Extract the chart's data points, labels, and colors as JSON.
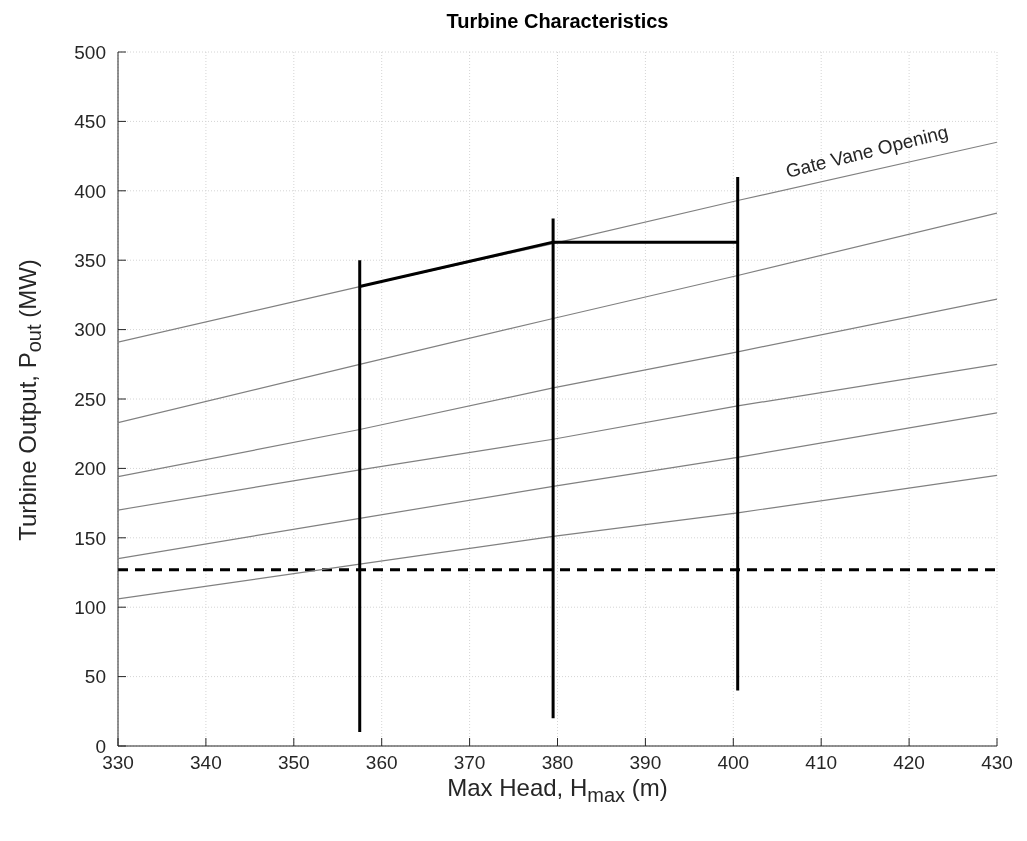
{
  "chart_data": {
    "type": "line",
    "title": "Turbine Characteristics",
    "xlabel": "Max Head, H$_{max}$ (m)",
    "ylabel": "Turbine Output, P$_{out}$ (MW)",
    "annotations": [
      "Gate Vane Opening"
    ],
    "xlim": [
      330,
      430
    ],
    "xticks": [
      330,
      340,
      350,
      360,
      370,
      380,
      390,
      400,
      410,
      420,
      430
    ],
    "ylim": [
      0,
      500
    ],
    "yticks": [
      0,
      50,
      100,
      150,
      200,
      250,
      300,
      350,
      400,
      450,
      500
    ],
    "grid": true,
    "series": [
      {
        "color": "#808080",
        "x": [
          330,
          357.5,
          379.5,
          400.5,
          430
        ],
        "values": [
          291,
          331,
          362,
          393,
          435
        ]
      },
      {
        "color": "#808080",
        "x": [
          330,
          357.5,
          379.5,
          400.5,
          430
        ],
        "values": [
          233,
          275,
          308,
          339,
          384
        ]
      },
      {
        "color": "#808080",
        "x": [
          330,
          357.5,
          379.5,
          400.5,
          430
        ],
        "values": [
          194,
          228,
          258,
          284,
          322
        ]
      },
      {
        "color": "#808080",
        "x": [
          330,
          357.5,
          379.5,
          400.5,
          430
        ],
        "values": [
          170,
          199,
          221,
          245,
          275
        ]
      },
      {
        "color": "#808080",
        "x": [
          330,
          357.5,
          379.5,
          400.5,
          430
        ],
        "values": [
          135,
          164,
          187,
          208,
          240
        ]
      },
      {
        "color": "#808080",
        "x": [
          330,
          357.5,
          379.5,
          400.5,
          430
        ],
        "values": [
          106,
          131,
          151,
          168,
          195
        ]
      },
      {
        "color": "#000000",
        "x": [
          357.5,
          357.5
        ],
        "values": [
          10,
          350
        ]
      },
      {
        "color": "#000000",
        "x": [
          379.5,
          379.5
        ],
        "values": [
          20,
          380
        ]
      },
      {
        "color": "#000000",
        "x": [
          400.5,
          400.5
        ],
        "values": [
          40,
          410
        ]
      },
      {
        "color": "#000000",
        "x": [
          357.5,
          379.5,
          400.5
        ],
        "values": [
          331,
          363,
          363
        ]
      }
    ],
    "ref_lines": [
      {
        "axis": "y",
        "value": 127,
        "color": "#000000",
        "line_style": "dashed"
      }
    ]
  }
}
